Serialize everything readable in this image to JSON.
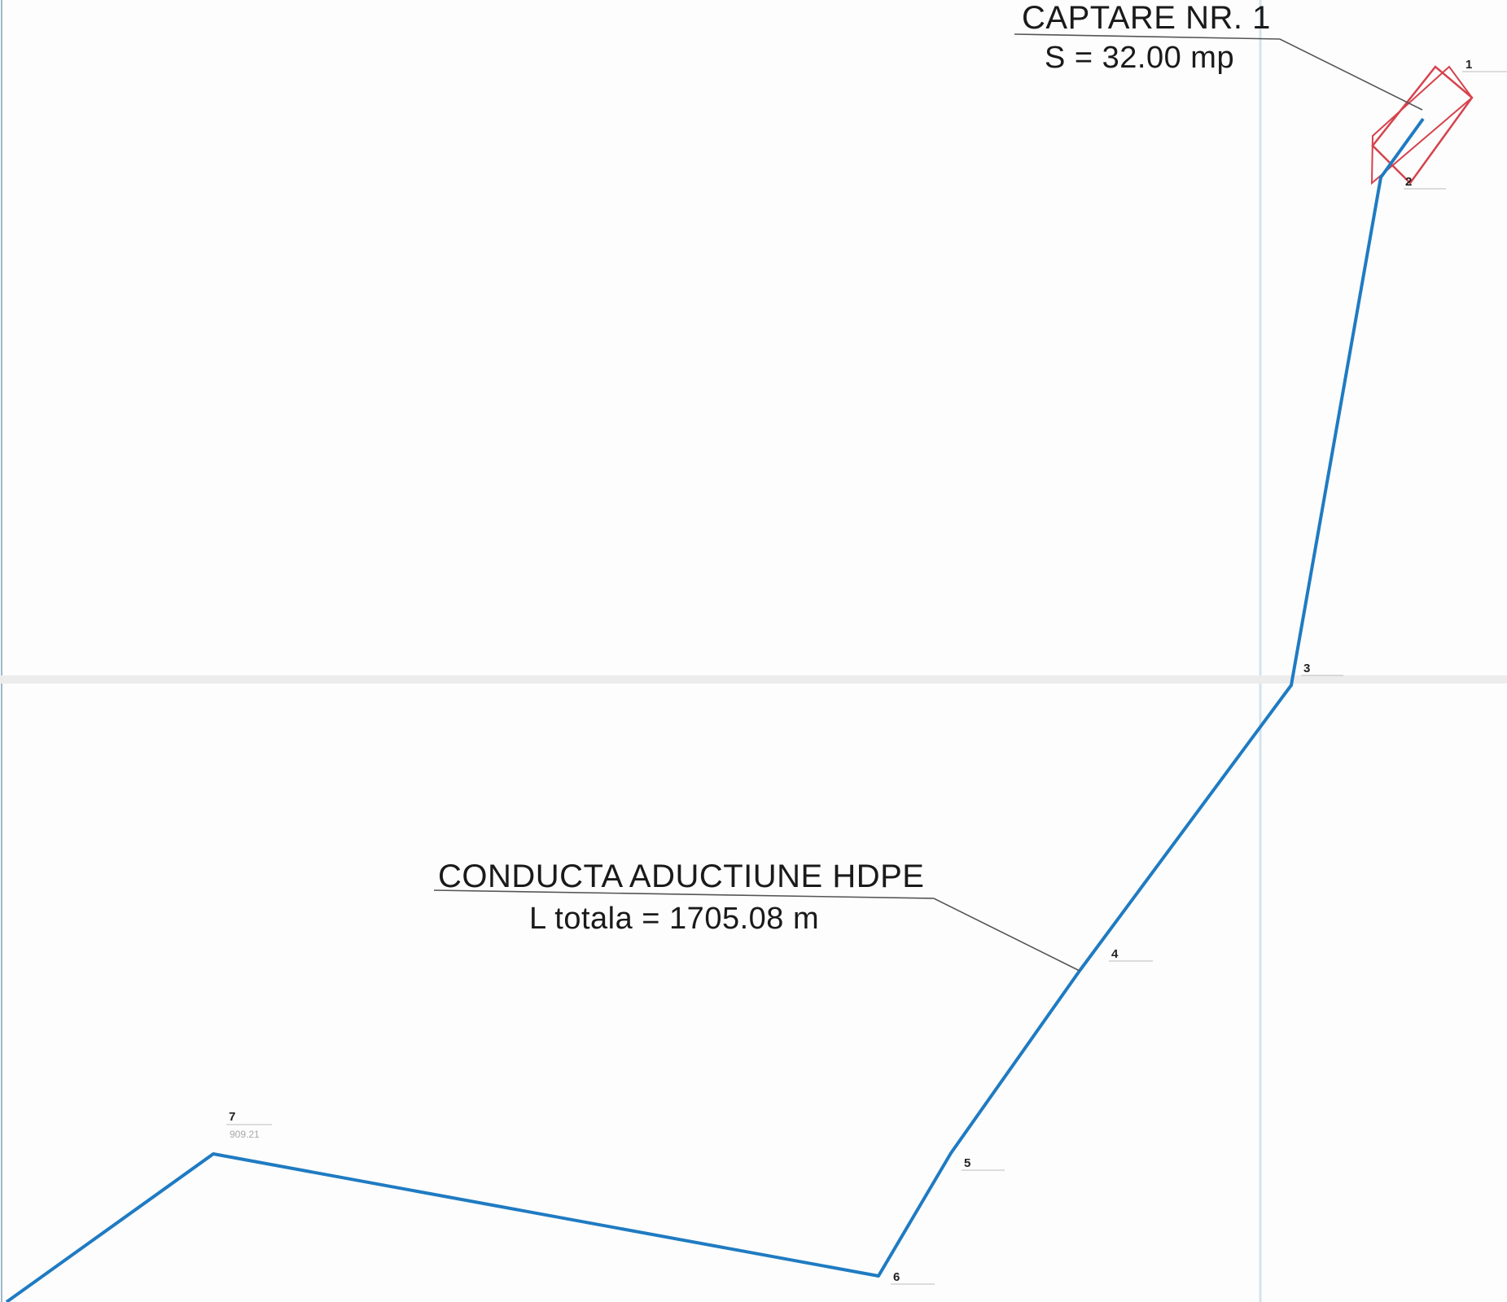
{
  "colors": {
    "pipeline": "#1f7bc2",
    "captare_outline": "#d6424d",
    "leader": "#555555",
    "grid_line": "#c9dbe8",
    "label_text": "#1a1a1a"
  },
  "captare": {
    "title": "CAPTARE NR. 1",
    "area": "S = 32.00 mp"
  },
  "conducta": {
    "title": "CONDUCTA ADUCTIUNE HDPE",
    "length": "L totala = 1705.08 m"
  },
  "vertices": [
    {
      "id": "1",
      "elevation": ""
    },
    {
      "id": "2",
      "elevation": ""
    },
    {
      "id": "3",
      "elevation": ""
    },
    {
      "id": "4",
      "elevation": ""
    },
    {
      "id": "5",
      "elevation": ""
    },
    {
      "id": "6",
      "elevation": ""
    },
    {
      "id": "7",
      "elevation": "909.21"
    }
  ]
}
